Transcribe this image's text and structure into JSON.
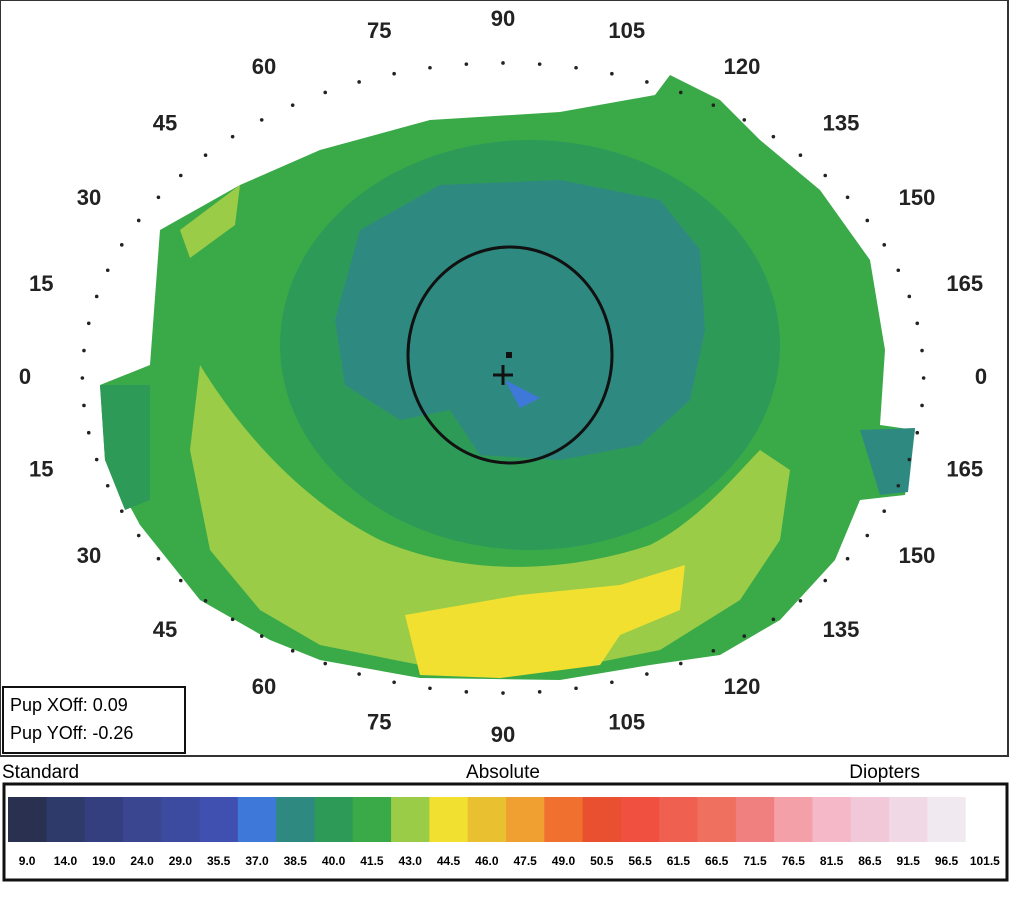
{
  "map": {
    "upper_labels": [
      "0",
      "15",
      "30",
      "45",
      "60",
      "75",
      "90",
      "105",
      "120",
      "135",
      "150",
      "165",
      "0"
    ],
    "lower_labels": [
      "165",
      "150",
      "135",
      "120",
      "105",
      "90",
      "75",
      "60",
      "45",
      "30",
      "15"
    ],
    "pupil": [
      "Pup XOff: 0.09",
      "Pup YOff: -0.26"
    ]
  },
  "scale": {
    "left": "Standard",
    "center": "Absolute",
    "right": "Diopters",
    "steps": [
      {
        "label": "9.0",
        "color": "#2a3050"
      },
      {
        "label": "14.0",
        "color": "#2d3a6a"
      },
      {
        "label": "19.0",
        "color": "#343f80"
      },
      {
        "label": "24.0",
        "color": "#3a4690"
      },
      {
        "label": "29.0",
        "color": "#3c4aa0"
      },
      {
        "label": "35.5",
        "color": "#4050b0"
      },
      {
        "label": "37.0",
        "color": "#3e78d8"
      },
      {
        "label": "38.5",
        "color": "#2e8a80"
      },
      {
        "label": "40.0",
        "color": "#2e9a58"
      },
      {
        "label": "41.5",
        "color": "#3aaa48"
      },
      {
        "label": "43.0",
        "color": "#9acc48"
      },
      {
        "label": "44.5",
        "color": "#f2e030"
      },
      {
        "label": "46.0",
        "color": "#e8c030"
      },
      {
        "label": "47.5",
        "color": "#f0a030"
      },
      {
        "label": "49.0",
        "color": "#f07030"
      },
      {
        "label": "50.5",
        "color": "#e85030"
      },
      {
        "label": "56.5",
        "color": "#f05040"
      },
      {
        "label": "61.5",
        "color": "#f06050"
      },
      {
        "label": "66.5",
        "color": "#f07060"
      },
      {
        "label": "71.5",
        "color": "#f08080"
      },
      {
        "label": "76.5",
        "color": "#f4a0a8"
      },
      {
        "label": "81.5",
        "color": "#f4b8c8"
      },
      {
        "label": "86.5",
        "color": "#f0c8d8"
      },
      {
        "label": "91.5",
        "color": "#f0d8e4"
      },
      {
        "label": "96.5",
        "color": "#f0eaf0"
      },
      {
        "label": "101.5",
        "color": "#ffffff"
      }
    ]
  }
}
